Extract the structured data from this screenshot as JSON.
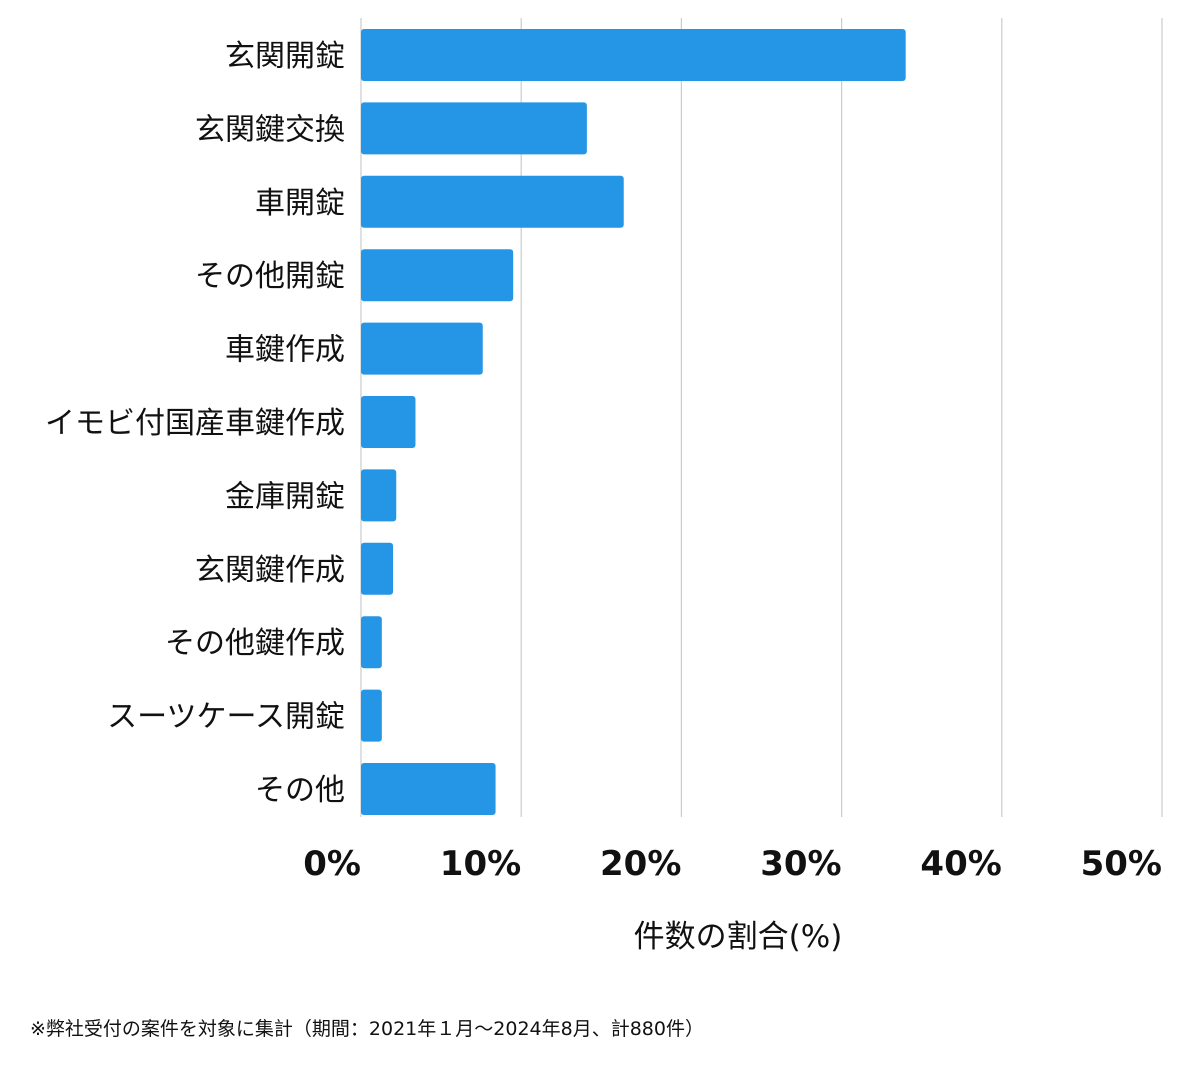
{
  "chart_data": {
    "type": "bar",
    "orientation": "horizontal",
    "categories": [
      "玄関開錠",
      "玄関鍵交換",
      "車開錠",
      "その他開錠",
      "車鍵作成",
      "イモビ付国産車鍵作成",
      "金庫開錠",
      "玄関鍵作成",
      "その他鍵作成",
      "スーツケース開錠",
      "その他"
    ],
    "values": [
      34.0,
      14.1,
      16.4,
      9.5,
      7.6,
      3.4,
      2.2,
      2.0,
      1.3,
      1.3,
      8.4
    ],
    "xlim": [
      0,
      50
    ],
    "xticks": [
      0,
      10,
      20,
      30,
      40,
      50
    ],
    "xtick_labels": [
      "0%",
      "10%",
      "20%",
      "30%",
      "40%",
      "50%"
    ],
    "xlabel": "件数の割合(%)",
    "grid": "vertical",
    "bar_color": "#2596e6",
    "grid_color": "#cccccc"
  },
  "footnote": "※弊社受付の案件を対象に集計（期間：2021年１月〜2024年8月、計880件）"
}
